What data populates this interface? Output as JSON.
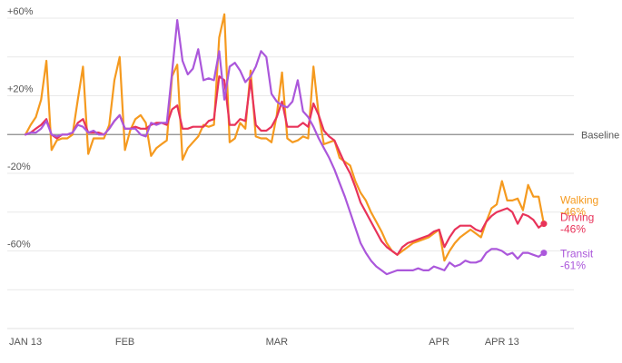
{
  "chart_data": {
    "type": "line",
    "title": "",
    "xlabel": "",
    "ylabel": "",
    "ylim": [
      -100,
      60
    ],
    "y_ticks": [
      {
        "value": 60,
        "label": "+60%"
      },
      {
        "value": 20,
        "label": "+20%"
      },
      {
        "value": -20,
        "label": "-20%"
      },
      {
        "value": -60,
        "label": "-60%"
      }
    ],
    "gridlines": [
      60,
      40,
      20,
      0,
      -20,
      -40,
      -60,
      -80,
      -100
    ],
    "baseline": {
      "value": 0,
      "label": "Baseline"
    },
    "x_ticks": [
      {
        "date": "2020-01-13",
        "label": "JAN 13"
      },
      {
        "date": "2020-02-01",
        "label": "FEB"
      },
      {
        "date": "2020-03-01",
        "label": "MAR"
      },
      {
        "date": "2020-04-01",
        "label": "APR"
      },
      {
        "date": "2020-04-13",
        "label": "APR 13"
      }
    ],
    "start_date": "2020-01-13",
    "series": [
      {
        "name": "Walking",
        "value_label": "-46%",
        "color": "#F59A1F",
        "values": [
          0,
          5,
          9,
          18,
          38,
          -8,
          -3,
          -2,
          -2,
          0,
          18,
          35,
          -10,
          -2,
          -2,
          -2,
          5,
          28,
          40,
          -8,
          2,
          8,
          10,
          6,
          -11,
          -7,
          -5,
          -3,
          30,
          36,
          -13,
          -7,
          -4,
          -1,
          5,
          4,
          5,
          50,
          62,
          -4,
          -2,
          6,
          3,
          33,
          -1,
          -2,
          -2,
          -4,
          10,
          32,
          -2,
          -4,
          -3,
          -1,
          -2,
          35,
          10,
          -5,
          -4,
          -3,
          -12,
          -14,
          -16,
          -24,
          -30,
          -34,
          -40,
          -45,
          -50,
          -56,
          -60,
          -62,
          -60,
          -58,
          -56,
          -55,
          -54,
          -53,
          -51,
          -49,
          -65,
          -60,
          -56,
          -53,
          -51,
          -49,
          -51,
          -53,
          -45,
          -38,
          -36,
          -24,
          -34,
          -34,
          -33,
          -39,
          -26,
          -32,
          -32,
          -46
        ]
      },
      {
        "name": "Driving",
        "value_label": "-46%",
        "color": "#E8335A",
        "values": [
          0,
          1,
          3,
          5,
          8,
          0,
          -2,
          0,
          0,
          1,
          6,
          8,
          1,
          1,
          1,
          0,
          3,
          7,
          10,
          3,
          3,
          4,
          3,
          3,
          5,
          6,
          6,
          5,
          13,
          15,
          3,
          3,
          4,
          4,
          4,
          7,
          8,
          30,
          28,
          5,
          5,
          8,
          7,
          28,
          5,
          2,
          2,
          4,
          9,
          17,
          4,
          4,
          4,
          6,
          4,
          16,
          10,
          2,
          -1,
          -3,
          -9,
          -15,
          -20,
          -27,
          -35,
          -40,
          -45,
          -50,
          -55,
          -58,
          -60,
          -62,
          -58,
          -56,
          -55,
          -54,
          -53,
          -52,
          -50,
          -49,
          -58,
          -53,
          -49,
          -47,
          -47,
          -47,
          -49,
          -50,
          -45,
          -42,
          -40,
          -39,
          -38,
          -40,
          -46,
          -41,
          -42,
          -44,
          -48,
          -46
        ]
      },
      {
        "name": "Transit",
        "value_label": "-61%",
        "color": "#AB57DB",
        "values": [
          0,
          1,
          1,
          3,
          7,
          0,
          -1,
          0,
          0,
          1,
          5,
          4,
          1,
          2,
          0,
          0,
          3,
          7,
          10,
          3,
          3,
          3,
          0,
          -1,
          6,
          5,
          6,
          6,
          32,
          59,
          38,
          31,
          34,
          44,
          28,
          29,
          28,
          43,
          18,
          35,
          37,
          33,
          27,
          30,
          35,
          43,
          40,
          21,
          17,
          15,
          14,
          17,
          28,
          12,
          9,
          4,
          -2,
          -7,
          -12,
          -18,
          -25,
          -32,
          -40,
          -48,
          -56,
          -61,
          -65,
          -68,
          -70,
          -72,
          -71,
          -70,
          -70,
          -70,
          -70,
          -69,
          -70,
          -70,
          -68,
          -69,
          -70,
          -66,
          -68,
          -67,
          -65,
          -66,
          -66,
          -65,
          -61,
          -59,
          -59,
          -60,
          -62,
          -61,
          -64,
          -61,
          -61,
          -62,
          -63,
          -61
        ]
      }
    ]
  }
}
